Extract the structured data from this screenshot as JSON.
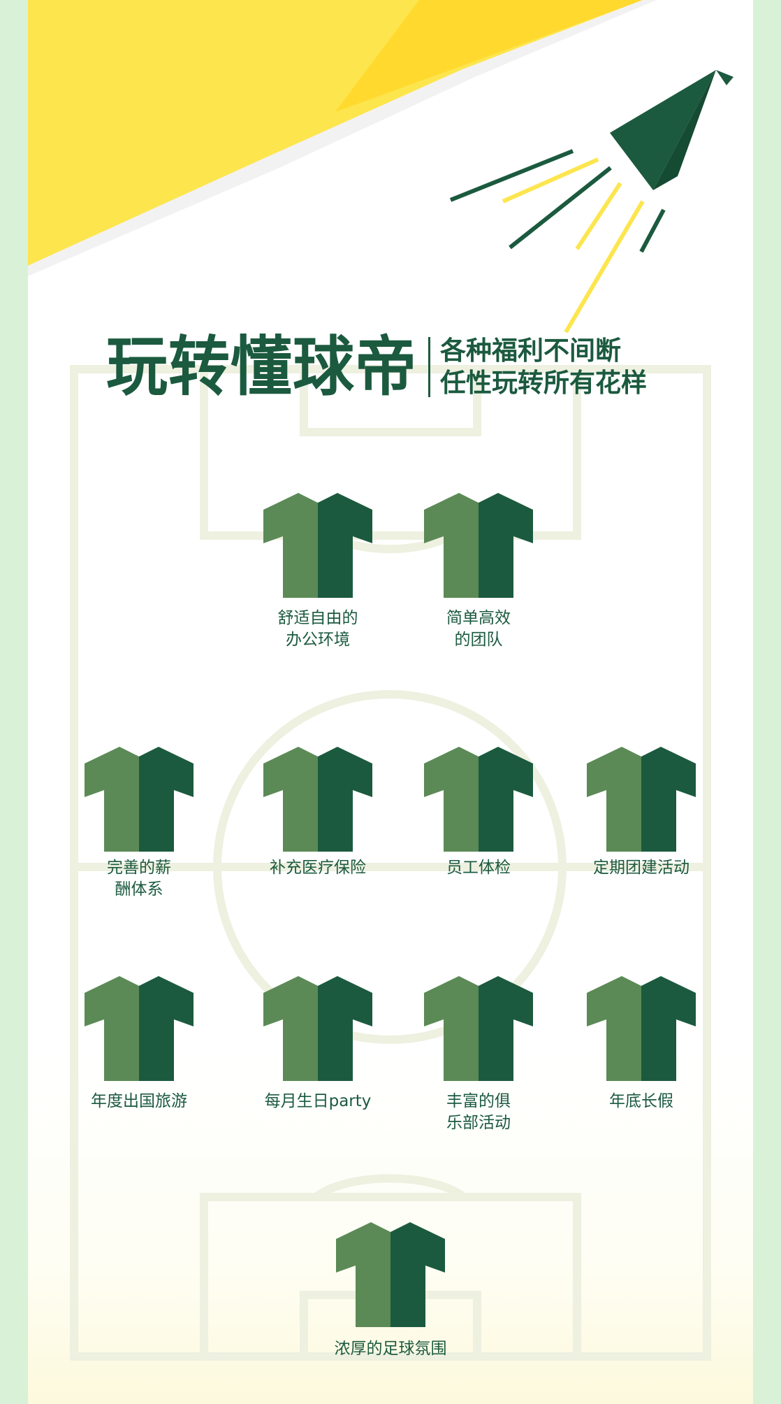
{
  "title": {
    "main": "玩转懂球帝",
    "sub_line1": "各种福利不间断",
    "sub_line2": "任性玩转所有花样"
  },
  "colors": {
    "accent_green": "#1b5a3f",
    "shirt_light": "#5b8a56",
    "yellow": "#fde54e",
    "field_lines": "#eef0e0"
  },
  "players": [
    {
      "label": "舒适自由的\n办公环境",
      "icon": "shirt-icon"
    },
    {
      "label": "简单高效\n的团队",
      "icon": "shirt-icon"
    },
    {
      "label": "完善的薪\n酬体系",
      "icon": "shirt-icon"
    },
    {
      "label": "补充医疗保险",
      "icon": "shirt-icon"
    },
    {
      "label": "员工体检",
      "icon": "shirt-icon"
    },
    {
      "label": "定期团建活动",
      "icon": "shirt-icon"
    },
    {
      "label": "年度出国旅游",
      "icon": "shirt-icon"
    },
    {
      "label": "每月生日party",
      "icon": "shirt-icon"
    },
    {
      "label": "丰富的俱\n乐部活动",
      "icon": "shirt-icon"
    },
    {
      "label": "年底长假",
      "icon": "shirt-icon"
    },
    {
      "label": "浓厚的足球氛围",
      "icon": "shirt-icon"
    }
  ]
}
